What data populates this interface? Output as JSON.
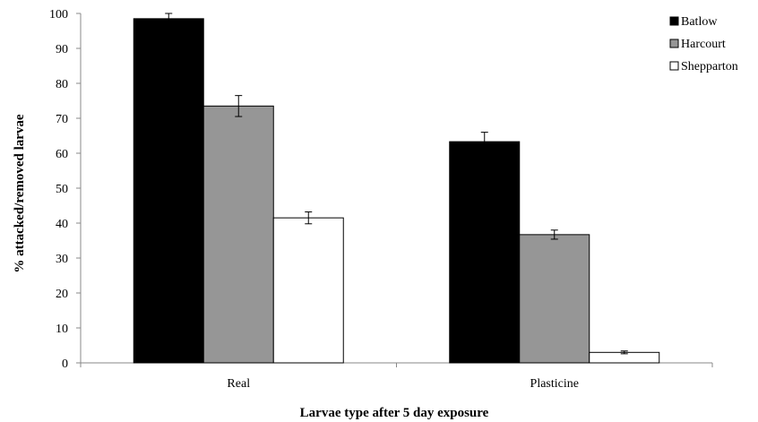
{
  "chart_data": {
    "type": "bar",
    "categories": [
      "Real",
      "Plasticine"
    ],
    "series": [
      {
        "name": "Batlow",
        "color": "#000000",
        "values": [
          98.5,
          63.3
        ],
        "error": [
          1.5,
          2.7
        ]
      },
      {
        "name": "Harcourt",
        "color": "#969696",
        "values": [
          73.5,
          36.7
        ],
        "error": [
          3.0,
          1.3
        ]
      },
      {
        "name": "Shepparton",
        "color": "#ffffff",
        "values": [
          41.5,
          3.0
        ],
        "error": [
          1.7,
          0.4
        ]
      }
    ],
    "xlabel": "Larvae type after 5 day exposure",
    "ylabel": "% attacked/removed larvae",
    "ylim": [
      0,
      100
    ],
    "yticks": [
      0,
      10,
      20,
      30,
      40,
      50,
      60,
      70,
      80,
      90,
      100
    ],
    "grid": false,
    "legend": "top-right",
    "error_bars": true
  }
}
